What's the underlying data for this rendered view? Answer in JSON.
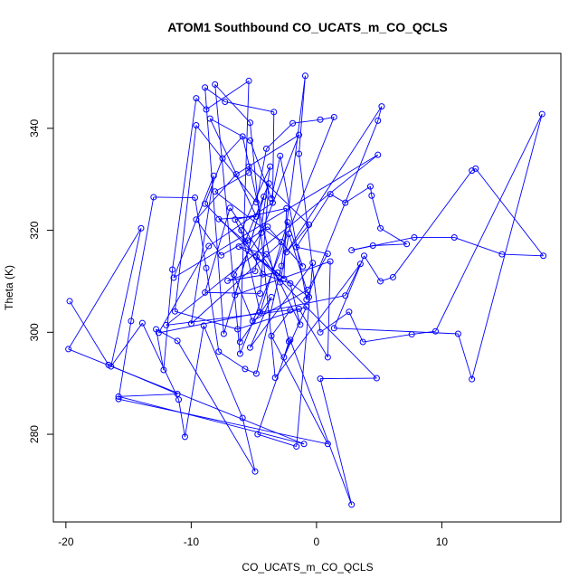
{
  "chart_data": {
    "type": "scatter",
    "mode": "lines+markers",
    "title": "ATOM1 Southbound CO_UCATS_m_CO_QCLS",
    "xlabel": "CO_UCATS_m_CO_QCLS",
    "ylabel": "Theta (K)",
    "xlim": [
      -21,
      19.5
    ],
    "ylim": [
      262.8,
      354.7
    ],
    "xticks": [
      -20,
      -10,
      0,
      10
    ],
    "yticks": [
      280,
      300,
      320,
      340
    ],
    "grid": false,
    "legend": "none",
    "color": "#0000ff",
    "marker": "open-circle",
    "series": [
      {
        "points": [
          [
            -19.7,
            306.1
          ],
          [
            -16.6,
            293.6
          ],
          [
            -11.1,
            287.9
          ],
          [
            -15.8,
            287.4
          ],
          [
            -1.0,
            278.1
          ],
          [
            -19.8,
            296.7
          ],
          [
            -14.0,
            320.4
          ],
          [
            -16.4,
            293.3
          ],
          [
            -13.9,
            301.8
          ],
          [
            -11.0,
            286.8
          ],
          [
            -10.5,
            279.5
          ],
          [
            -9.0,
            301.3
          ],
          [
            -5.9,
            283.2
          ],
          [
            -4.9,
            272.7
          ],
          [
            -11.1,
            298.3
          ],
          [
            -12.8,
            300.6
          ],
          [
            -12.2,
            292.6
          ],
          [
            -11.5,
            312.3
          ],
          [
            -9.6,
            345.9
          ],
          [
            -8.8,
            343.7
          ],
          [
            -5.4,
            349.3
          ],
          [
            -6.1,
            298.1
          ],
          [
            -3.6,
            306.9
          ],
          [
            -5.3,
            297.0
          ],
          [
            -0.3,
            313.6
          ],
          [
            -1.6,
            277.6
          ],
          [
            -4.7,
            280.0
          ],
          [
            -2.1,
            298.5
          ],
          [
            2.8,
            266.2
          ],
          [
            0.3,
            290.9
          ],
          [
            4.8,
            291.0
          ],
          [
            -8.9,
            325.2
          ],
          [
            -7.5,
            334.1
          ],
          [
            -5.9,
            338.4
          ],
          [
            -2.2,
            298.2
          ],
          [
            -2.6,
            295.1
          ],
          [
            -0.8,
            305.0
          ],
          [
            -6.3,
            300.6
          ],
          [
            -11.3,
            304.1
          ],
          [
            -9.6,
            340.6
          ],
          [
            -4.8,
            325.5
          ],
          [
            -4.0,
            336.0
          ],
          [
            -1.9,
            341.0
          ],
          [
            0.3,
            341.7
          ],
          [
            1.4,
            342.2
          ],
          [
            -6.1,
            295.8
          ],
          [
            -8.1,
            348.6
          ],
          [
            -5.3,
            341.1
          ],
          [
            -3.3,
            291.1
          ],
          [
            3.5,
            313.4
          ],
          [
            2.3,
            307.2
          ],
          [
            -12.6,
            299.9
          ],
          [
            -8.6,
            316.9
          ],
          [
            -3.5,
            325.4
          ],
          [
            -3.4,
            343.2
          ],
          [
            -7.3,
            345.2
          ],
          [
            -8.9,
            348.0
          ],
          [
            -7.4,
            299.7
          ],
          [
            -4.2,
            326.6
          ],
          [
            -6.5,
            307.3
          ],
          [
            1.1,
            313.9
          ],
          [
            0.9,
            295.1
          ],
          [
            -1.4,
            304.6
          ],
          [
            -12.0,
            301.4
          ],
          [
            4.9,
            334.8
          ],
          [
            -11.4,
            310.7
          ],
          [
            -8.2,
            330.7
          ],
          [
            -10.0,
            301.7
          ],
          [
            -2.8,
            317.7
          ],
          [
            -8.1,
            327.6
          ],
          [
            -5.4,
            331.3
          ],
          [
            -5.4,
            332.5
          ],
          [
            -0.6,
            321.1
          ],
          [
            -2.4,
            315.7
          ],
          [
            5.2,
            344.3
          ],
          [
            4.9,
            341.5
          ],
          [
            -0.8,
            306.4
          ],
          [
            -2.9,
            334.6
          ],
          [
            -3.6,
            326.2
          ],
          [
            -5.3,
            337.6
          ],
          [
            -8.5,
            341.9
          ],
          [
            -4.8,
            322.7
          ],
          [
            -7.8,
            322.2
          ],
          [
            -5.7,
            317.8
          ],
          [
            -3.8,
            329.2
          ],
          [
            -4.5,
            307.6
          ],
          [
            -8.9,
            307.8
          ],
          [
            -6.9,
            324.4
          ],
          [
            -2.9,
            309.8
          ],
          [
            -2.2,
            319.3
          ],
          [
            -0.6,
            306.9
          ],
          [
            -4.8,
            314.8
          ],
          [
            -2.6,
            310.5
          ],
          [
            -2.4,
            324.3
          ],
          [
            -6.5,
            322.1
          ],
          [
            -4.3,
            311.4
          ],
          [
            -2.1,
            309.6
          ],
          [
            -1.3,
            301.5
          ],
          [
            -4.0,
            315.3
          ],
          [
            -6.2,
            316.8
          ],
          [
            -3.1,
            311.7
          ],
          [
            -7.1,
            310.1
          ],
          [
            -4.9,
            312.0
          ],
          [
            -3.7,
            332.5
          ],
          [
            -6.0,
            320.0
          ],
          [
            -4.5,
            303.9
          ],
          [
            -2.3,
            321.6
          ],
          [
            -1.1,
            312.9
          ],
          [
            -3.9,
            320.7
          ],
          [
            -5.5,
            318.0
          ],
          [
            -7.6,
            315.1
          ],
          [
            -9.6,
            322.1
          ],
          [
            -6.4,
            331.0
          ],
          [
            -1.4,
            338.7
          ],
          [
            -4.4,
            319.5
          ],
          [
            -6.6,
            311.3
          ],
          [
            -5.1,
            302.2
          ],
          [
            -0.7,
            308.3
          ],
          [
            0.9,
            315.4
          ],
          [
            -1.6,
            316.7
          ],
          [
            1.1,
            327.1
          ],
          [
            2.3,
            325.4
          ],
          [
            4.3,
            328.6
          ],
          [
            4.4,
            326.8
          ],
          [
            5.1,
            320.4
          ],
          [
            7.2,
            317.3
          ],
          [
            4.5,
            317.0
          ],
          [
            2.8,
            316.1
          ],
          [
            7.8,
            318.6
          ],
          [
            11.0,
            318.6
          ],
          [
            14.8,
            315.3
          ],
          [
            18.1,
            315.0
          ],
          [
            12.7,
            332.1
          ],
          [
            12.4,
            331.7
          ],
          [
            6.1,
            310.8
          ],
          [
            5.1,
            310.0
          ],
          [
            3.8,
            315.0
          ],
          [
            1.4,
            300.8
          ],
          [
            11.3,
            299.7
          ],
          [
            12.4,
            290.8
          ],
          [
            18.0,
            342.8
          ],
          [
            9.5,
            300.2
          ],
          [
            7.6,
            299.6
          ],
          [
            3.7,
            298.1
          ],
          [
            2.6,
            304.0
          ],
          [
            0.3,
            300.0
          ],
          [
            -1.4,
            335.0
          ],
          [
            -0.9,
            350.3
          ],
          [
            -2.8,
            313.0
          ],
          [
            -4.8,
            291.9
          ],
          [
            -5.7,
            292.8
          ],
          [
            -7.8,
            296.2
          ],
          [
            -8.8,
            312.6
          ],
          [
            -9.7,
            326.4
          ],
          [
            -13.0,
            326.5
          ],
          [
            -14.8,
            302.2
          ],
          [
            -15.8,
            286.9
          ],
          [
            0.9,
            278.1
          ],
          [
            -3.6,
            299.3
          ],
          [
            -2.1,
            304.3
          ]
        ]
      }
    ]
  }
}
